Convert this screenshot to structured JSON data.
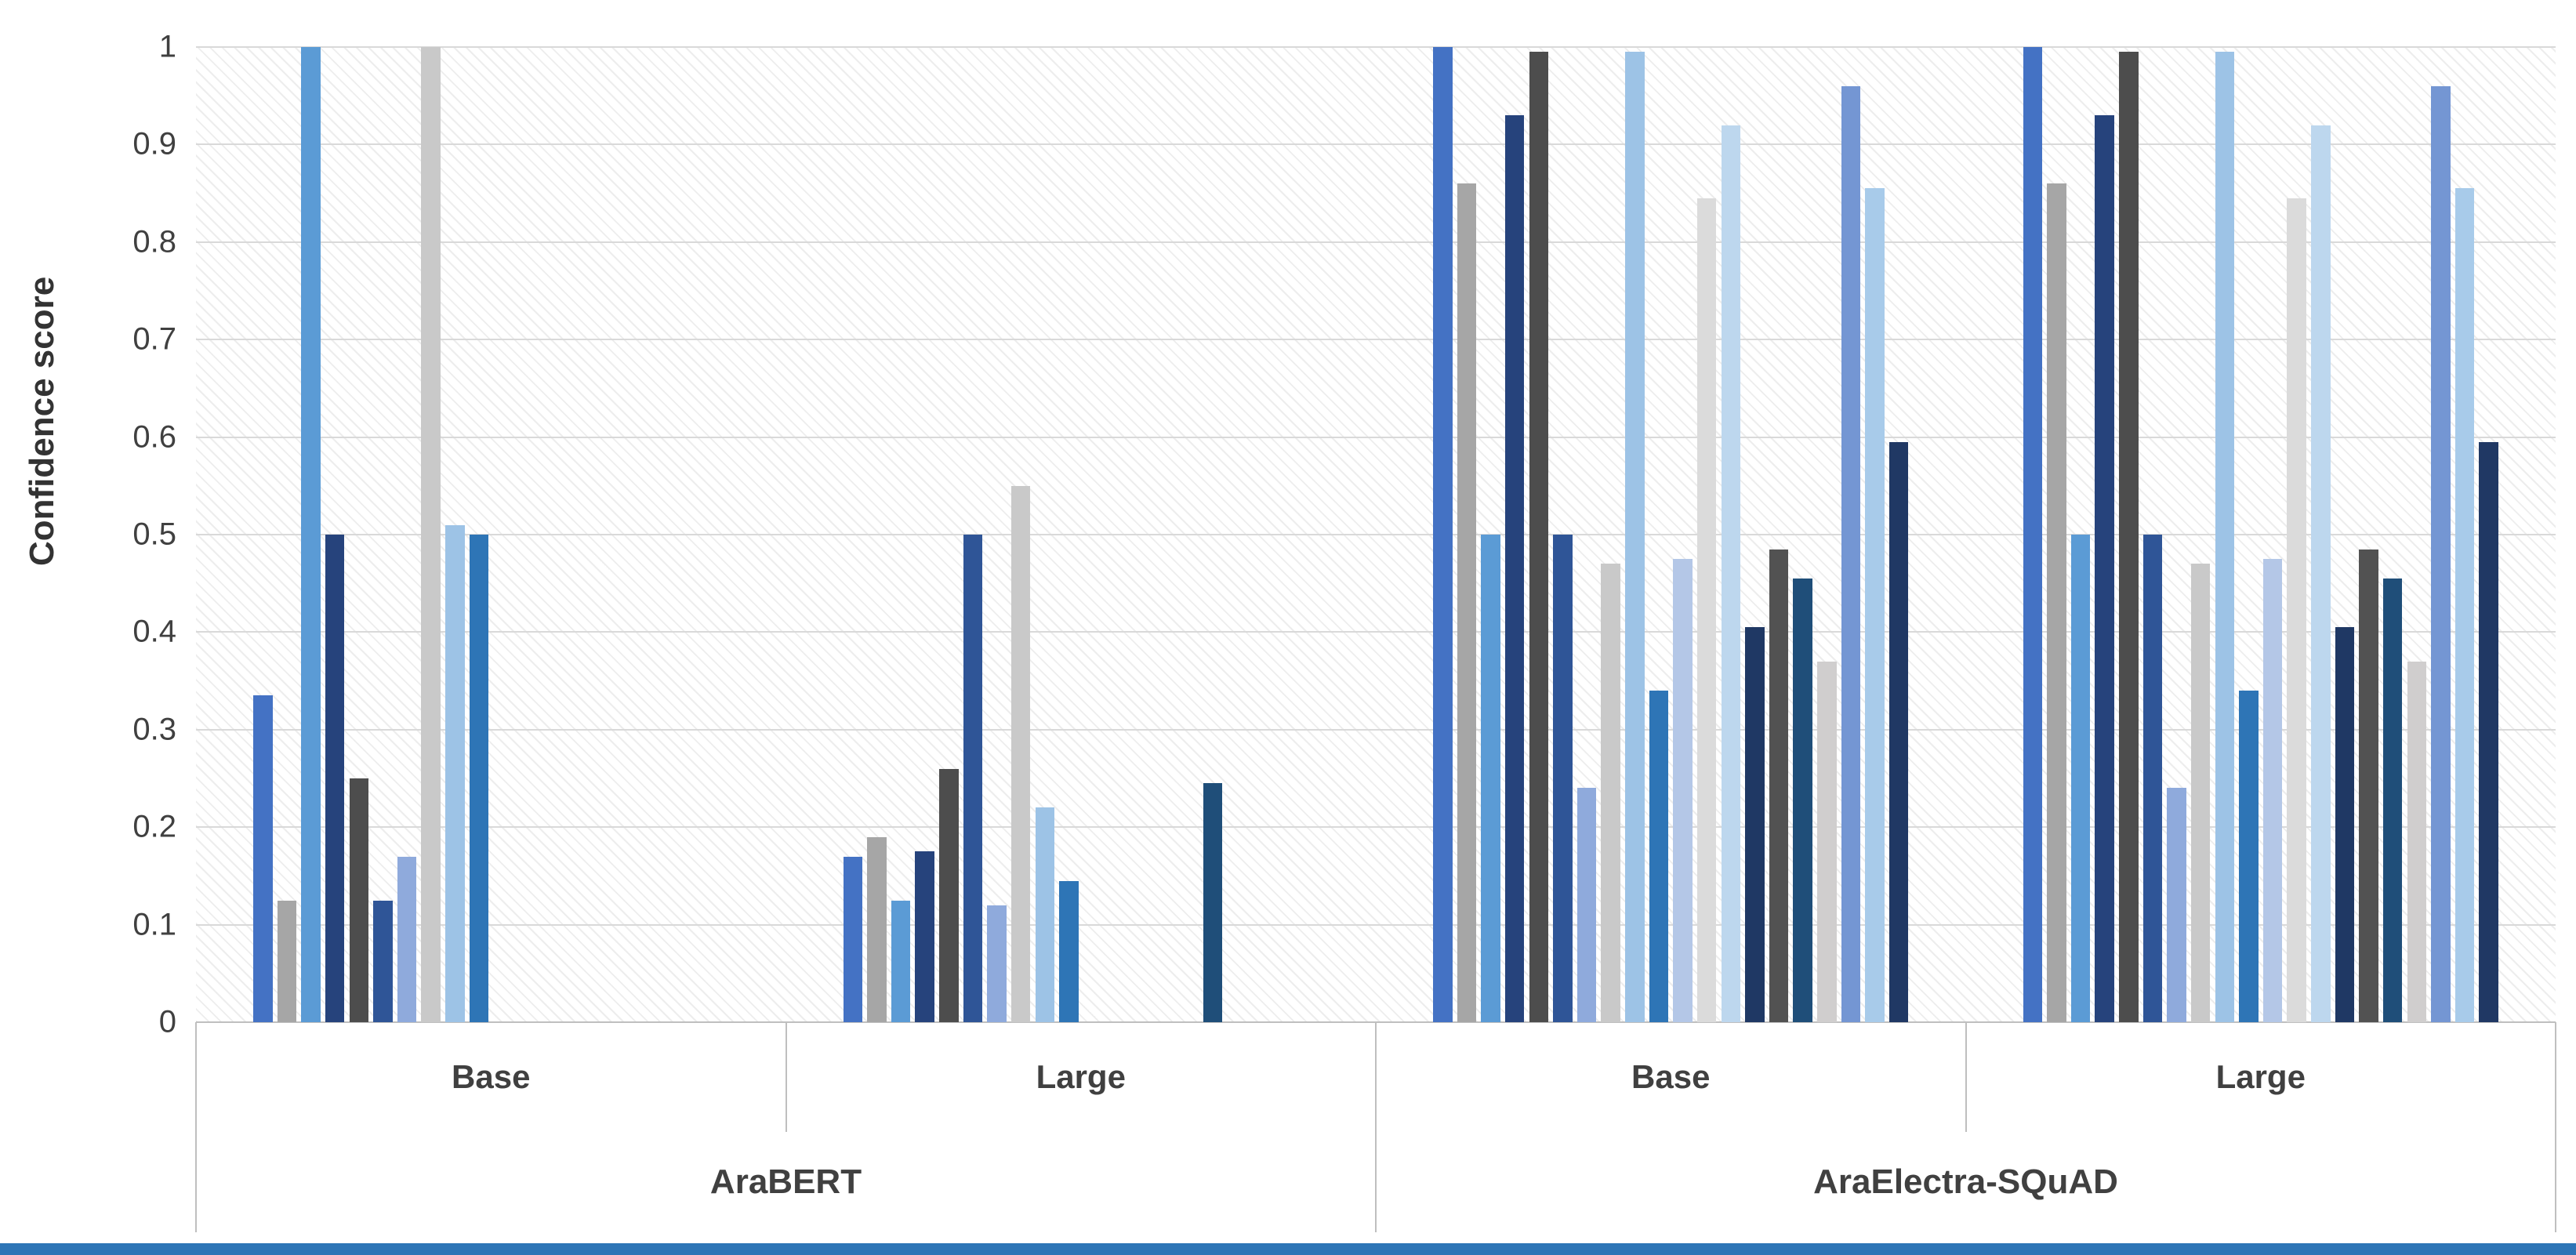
{
  "figure": {
    "bottom_bar_color": "#2E75B6",
    "gridline_color": "#D9D9D9",
    "axis_line_color": "#BFBFBF",
    "plot_background_pattern": "diagonal-hatch"
  },
  "chart_data": {
    "type": "bar",
    "title": "",
    "xlabel": "",
    "ylabel": "Confidence score",
    "ylim": [
      0,
      1
    ],
    "grid": true,
    "legend": "none",
    "yticks": [
      "1",
      "0.9",
      "0.8",
      "0.7",
      "0.6",
      "0.5",
      "0.4",
      "0.3",
      "0.2",
      "0.1",
      "0"
    ],
    "series_colors": [
      "#4472C4",
      "#A6A6A6",
      "#5B9BD5",
      "#26437C",
      "#4D4D4D",
      "#2F5597",
      "#8FAADC",
      "#C9C9C9",
      "#9DC3E6",
      "#2E75B6",
      "#B4C7E7",
      "#DBDBDB",
      "#BDD7EE",
      "#1F3864",
      "#525252",
      "#1F4E79",
      "#D0CECE",
      "#7496D3",
      "#A8CBEA",
      "#203864"
    ],
    "x_level1_labels": [
      "Base",
      "Large",
      "Base",
      "Large"
    ],
    "x_level2_labels": [
      "AraBERT",
      "AraElectra-SQuAD"
    ],
    "categories": [
      {
        "group": "AraBERT",
        "label": "Base",
        "values": [
          0.335,
          0.125,
          1,
          0.5,
          0.25,
          0.125,
          0.17,
          1,
          0.51,
          0.5,
          0,
          0,
          0,
          0,
          0,
          0,
          0,
          0,
          0,
          0
        ]
      },
      {
        "group": "AraBERT",
        "label": "Large",
        "values": [
          0.17,
          0.19,
          0.125,
          0.175,
          0.26,
          0.5,
          0.12,
          0.55,
          0.22,
          0.145,
          0,
          0,
          0,
          0,
          0,
          0.245,
          0,
          0,
          0,
          0
        ]
      },
      {
        "group": "AraElectra-SQuAD",
        "label": "Base",
        "values": [
          1,
          0.86,
          0.5,
          0.93,
          0.995,
          0.5,
          0.24,
          0.47,
          0.995,
          0.34,
          0.475,
          0.845,
          0.92,
          0.405,
          0.485,
          0.455,
          0.37,
          0.96,
          0.855,
          0.595
        ]
      },
      {
        "group": "AraElectra-SQuAD",
        "label": "Large",
        "values": [
          1,
          0.86,
          0.5,
          0.93,
          0.995,
          0.5,
          0.24,
          0.47,
          0.995,
          0.34,
          0.475,
          0.845,
          0.92,
          0.405,
          0.485,
          0.455,
          0.37,
          0.96,
          0.855,
          0.595
        ]
      }
    ]
  }
}
